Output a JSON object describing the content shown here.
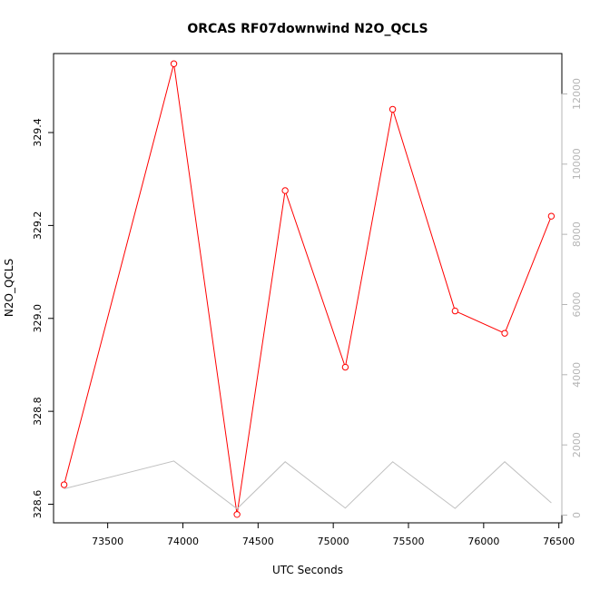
{
  "chart_data": {
    "type": "line",
    "title": "ORCAS RF07downwind N2O_QCLS",
    "xlabel": "UTC Seconds",
    "ylabel": "N2O_QCLS",
    "x_ticks": [
      73500,
      74000,
      74500,
      75000,
      75500,
      76000,
      76500
    ],
    "y_ticks": [
      328.6,
      328.8,
      329.0,
      329.2,
      329.4
    ],
    "y_tick_labels": [
      "328.6",
      "328.8",
      "329.0",
      "329.2",
      "329.4"
    ],
    "y2_ticks": [
      0,
      2000,
      4000,
      6000,
      8000,
      10000,
      12000
    ],
    "xlim": [
      73140,
      76520
    ],
    "ylim": [
      328.56,
      329.57
    ],
    "y2lim": [
      -220,
      13150
    ],
    "series": [
      {
        "axis": "left",
        "color": "#ff0000",
        "markers": "open-circle",
        "x": [
          73210,
          73940,
          74360,
          74680,
          75080,
          75395,
          75810,
          76140,
          76450
        ],
        "y": [
          328.642,
          329.548,
          328.578,
          329.275,
          328.895,
          329.45,
          329.016,
          328.968,
          329.22
        ]
      },
      {
        "axis": "right",
        "color": "#c0c0c0",
        "markers": "none",
        "x": [
          73210,
          73940,
          74360,
          74680,
          75080,
          75395,
          75810,
          76140,
          76450
        ],
        "y": [
          750,
          1540,
          180,
          1520,
          200,
          1520,
          190,
          1520,
          350
        ]
      }
    ]
  }
}
